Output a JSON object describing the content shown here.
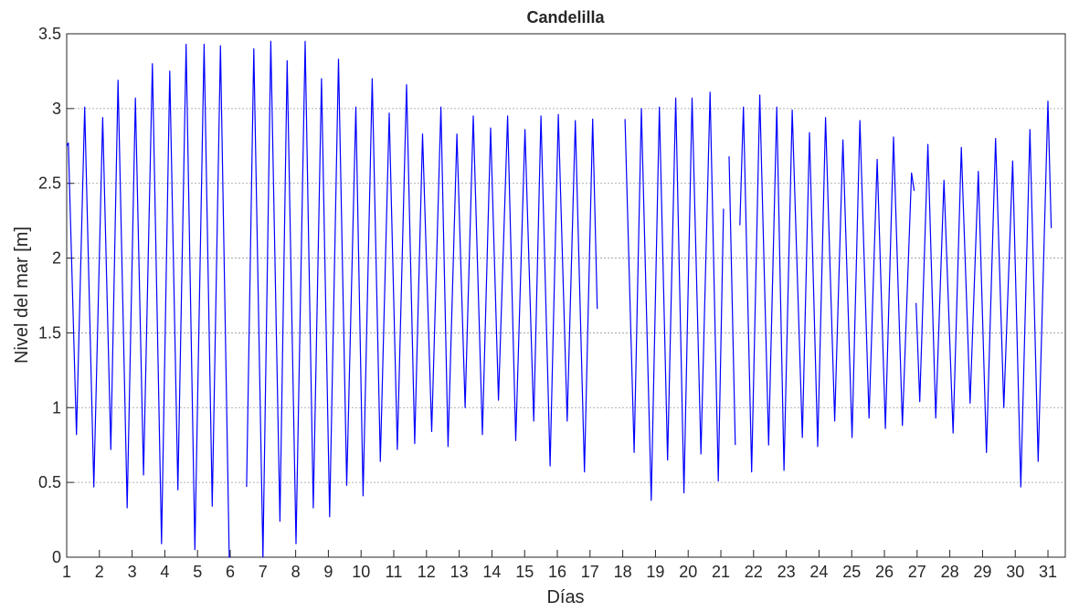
{
  "chart_data": {
    "type": "line",
    "title": "Candelilla",
    "xlabel": "Días",
    "ylabel": "Nivel del mar [m]",
    "xlim": [
      1,
      31.53
    ],
    "ylim": [
      0,
      3.5
    ],
    "xticks": [
      1,
      2,
      3,
      4,
      5,
      6,
      7,
      8,
      9,
      10,
      11,
      12,
      13,
      14,
      15,
      16,
      17,
      18,
      19,
      20,
      21,
      22,
      23,
      24,
      25,
      26,
      27,
      28,
      29,
      30,
      31
    ],
    "yticks": [
      0,
      0.5,
      1,
      1.5,
      2,
      2.5,
      3,
      3.5
    ],
    "grid": "y",
    "series": [
      {
        "color": "#0000ff",
        "x": [
          1.0,
          1.05,
          1.3,
          1.55,
          1.83,
          2.1,
          2.35,
          2.57,
          2.85,
          3.1,
          3.35,
          3.62,
          3.9,
          4.15,
          4.4,
          4.65,
          4.92,
          5.2,
          5.45,
          5.7,
          5.97,
          6.0,
          6.5,
          6.5,
          6.72,
          7.0,
          7.24,
          7.52,
          7.74,
          8.01,
          8.29,
          8.54,
          8.79,
          9.04,
          9.31,
          9.56,
          9.84,
          10.06,
          10.34,
          10.59,
          10.86,
          11.11,
          11.39,
          11.64,
          11.88,
          12.16,
          12.44,
          12.66,
          12.93,
          13.18,
          13.43,
          13.71,
          13.96,
          14.2,
          14.48,
          14.73,
          15.01,
          15.28,
          15.5,
          15.78,
          16.03,
          16.3,
          16.55,
          16.83,
          17.08,
          17.22,
          17.6,
          18.07,
          18.35,
          18.57,
          18.87,
          19.12,
          19.37,
          19.62,
          19.87,
          20.12,
          20.39,
          20.67,
          20.92,
          21.08,
          21.16,
          21.25,
          21.44,
          21.5,
          21.58,
          21.69,
          21.94,
          22.19,
          22.46,
          22.71,
          22.93,
          23.18,
          23.49,
          23.71,
          23.96,
          24.2,
          24.48,
          24.73,
          25.01,
          25.25,
          25.53,
          25.78,
          26.03,
          26.28,
          26.55,
          26.83,
          26.91,
          26.94,
          26.97,
          27.08,
          27.33,
          27.57,
          27.82,
          28.1,
          28.35,
          28.62,
          28.87,
          29.12,
          29.4,
          29.65,
          29.92,
          30.17,
          30.45,
          30.7,
          31.0,
          31.1
        ],
        "values": [
          2.75,
          2.77,
          0.82,
          3.01,
          0.47,
          2.94,
          0.72,
          3.19,
          0.33,
          3.07,
          0.55,
          3.3,
          0.09,
          3.25,
          0.45,
          3.43,
          0.05,
          3.43,
          0.34,
          3.42,
          0.0,
          0.0,
          null,
          0.47,
          3.4,
          0.0,
          3.45,
          0.24,
          3.32,
          0.09,
          3.45,
          0.33,
          3.2,
          0.27,
          3.33,
          0.48,
          3.01,
          0.41,
          3.2,
          0.64,
          2.97,
          0.72,
          3.16,
          0.76,
          2.83,
          0.84,
          3.01,
          0.74,
          2.83,
          1.0,
          2.95,
          0.82,
          2.87,
          1.05,
          2.95,
          0.78,
          2.86,
          0.91,
          2.95,
          0.61,
          2.96,
          0.91,
          2.92,
          0.57,
          2.93,
          1.66,
          null,
          2.93,
          0.7,
          3.0,
          0.38,
          3.01,
          0.65,
          3.07,
          0.43,
          3.07,
          0.69,
          3.11,
          0.51,
          2.33,
          null,
          2.68,
          0.75,
          null,
          2.22,
          3.01,
          0.57,
          3.09,
          0.75,
          3.01,
          0.58,
          2.99,
          0.8,
          2.84,
          0.74,
          2.94,
          0.91,
          2.79,
          0.8,
          2.92,
          0.93,
          2.66,
          0.86,
          2.81,
          0.88,
          2.57,
          2.45,
          null,
          1.7,
          1.04,
          2.76,
          0.93,
          2.52,
          0.83,
          2.74,
          1.03,
          2.58,
          0.7,
          2.8,
          1.0,
          2.65,
          0.47,
          2.86,
          0.64,
          3.05,
          2.2
        ]
      }
    ]
  }
}
